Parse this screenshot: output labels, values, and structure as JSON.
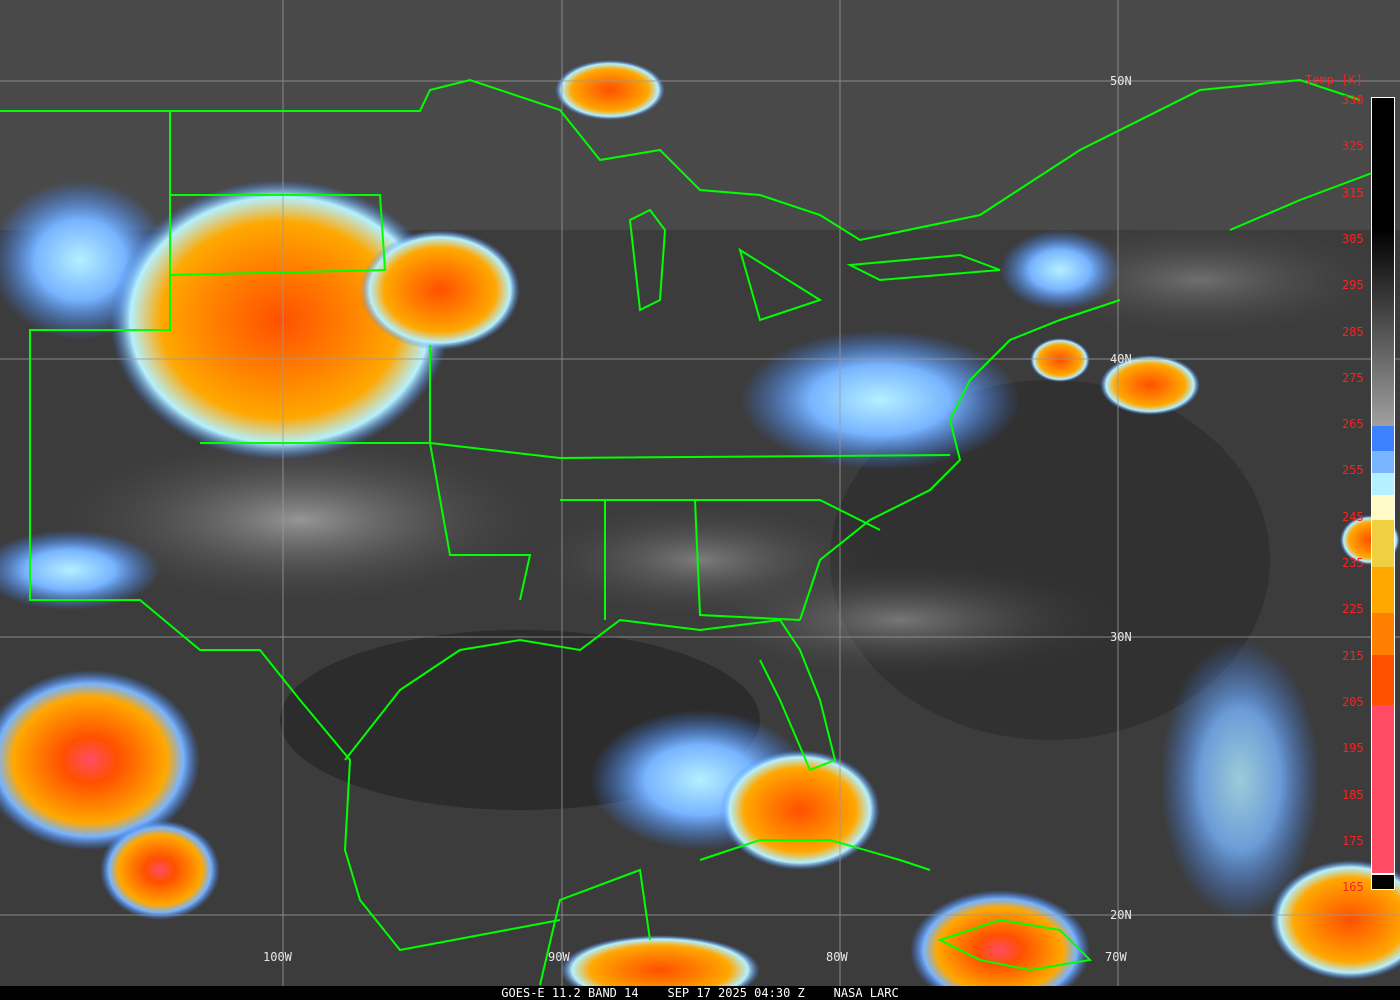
{
  "caption": {
    "product": "GOES-E 11.2 BAND 14",
    "datetime": "SEP 17 2025 04:30 Z",
    "source": "NASA LARC"
  },
  "grid": {
    "latitudes": [
      "50N",
      "40N",
      "30N",
      "20N"
    ],
    "longitudes": [
      "100W",
      "90W",
      "80W",
      "70W"
    ],
    "border_color": "#00ff00"
  },
  "colorbar": {
    "title": "Temp [K]",
    "labels": [
      "330",
      "325",
      "315",
      "305",
      "295",
      "285",
      "275",
      "265",
      "255",
      "245",
      "235",
      "225",
      "215",
      "205",
      "195",
      "185",
      "175",
      "165"
    ],
    "segments": [
      {
        "from_k": 265,
        "to_k": 331,
        "color": "gradient #000000 to #a0a0a0"
      },
      {
        "from_k": 260,
        "to_k": 265,
        "color": "#3c82ff"
      },
      {
        "from_k": 255,
        "to_k": 260,
        "color": "#78b4ff"
      },
      {
        "from_k": 250,
        "to_k": 255,
        "color": "#b4f0ff"
      },
      {
        "from_k": 245,
        "to_k": 250,
        "color": "#fffac8"
      },
      {
        "from_k": 235,
        "to_k": 245,
        "color": "#f0d040"
      },
      {
        "from_k": 225,
        "to_k": 235,
        "color": "#ffa800"
      },
      {
        "from_k": 215,
        "to_k": 225,
        "color": "#ff8000"
      },
      {
        "from_k": 205,
        "to_k": 215,
        "color": "#ff5000"
      },
      {
        "from_k": 165,
        "to_k": 205,
        "color": "#ff4c64"
      },
      {
        "from_k": 160,
        "to_k": 165,
        "color": "#000000"
      }
    ]
  }
}
